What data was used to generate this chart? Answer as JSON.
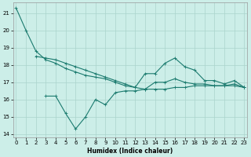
{
  "xlabel": "Humidex (Indice chaleur)",
  "background_color": "#cceee8",
  "grid_color": "#aad4cc",
  "line_color": "#1a7a6e",
  "ylim": [
    13.8,
    21.6
  ],
  "xlim": [
    -0.3,
    23.3
  ],
  "yticks": [
    14,
    15,
    16,
    17,
    18,
    19,
    20,
    21
  ],
  "xticks": [
    0,
    1,
    2,
    3,
    4,
    5,
    6,
    7,
    8,
    9,
    10,
    11,
    12,
    13,
    14,
    15,
    16,
    17,
    18,
    19,
    20,
    21,
    22,
    23
  ],
  "lines": [
    [
      21.3,
      20.0,
      18.8,
      18.3,
      18.1,
      17.8,
      17.6,
      17.4,
      17.3,
      17.2,
      17.0,
      16.8,
      16.7,
      17.5,
      17.5,
      18.1,
      18.4,
      17.9,
      17.7,
      17.1,
      17.1,
      16.9,
      17.1,
      16.7
    ],
    [
      null,
      null,
      18.5,
      18.4,
      18.3,
      18.1,
      17.9,
      17.7,
      17.5,
      17.3,
      17.1,
      16.9,
      16.7,
      16.6,
      17.0,
      17.0,
      17.2,
      17.0,
      16.9,
      16.9,
      16.8,
      16.8,
      16.8,
      16.7
    ],
    [
      null,
      null,
      null,
      16.2,
      16.2,
      15.2,
      14.3,
      15.0,
      16.0,
      15.7,
      16.4,
      16.5,
      16.5,
      16.6,
      16.6,
      16.6,
      16.7,
      16.7,
      16.8,
      16.8,
      16.8,
      16.8,
      16.9,
      16.7
    ]
  ]
}
